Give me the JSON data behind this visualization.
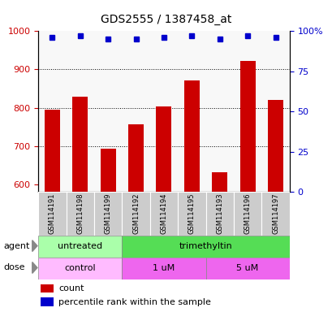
{
  "title": "GDS2555 / 1387458_at",
  "samples": [
    "GSM114191",
    "GSM114198",
    "GSM114199",
    "GSM114192",
    "GSM114194",
    "GSM114195",
    "GSM114193",
    "GSM114196",
    "GSM114197"
  ],
  "bar_values": [
    795,
    828,
    693,
    757,
    803,
    872,
    632,
    922,
    820
  ],
  "percentile_values": [
    96,
    97,
    95,
    95,
    96,
    97,
    95,
    97,
    96
  ],
  "bar_color": "#cc0000",
  "dot_color": "#0000cc",
  "ylim_left": [
    580,
    1000
  ],
  "ylim_right": [
    0,
    100
  ],
  "yticks_left": [
    600,
    700,
    800,
    900,
    1000
  ],
  "yticks_right": [
    0,
    25,
    50,
    75,
    100
  ],
  "ytick_right_labels": [
    "0",
    "25",
    "50",
    "75",
    "100%"
  ],
  "agent_groups": [
    {
      "label": "untreated",
      "start": 0,
      "end": 3,
      "color": "#aaffaa"
    },
    {
      "label": "trimethyltin",
      "start": 3,
      "end": 9,
      "color": "#55dd55"
    }
  ],
  "dose_groups": [
    {
      "label": "control",
      "start": 0,
      "end": 3,
      "color": "#ffbbff"
    },
    {
      "label": "1 uM",
      "start": 3,
      "end": 6,
      "color": "#ee66ee"
    },
    {
      "label": "5 uM",
      "start": 6,
      "end": 9,
      "color": "#ee66ee"
    }
  ],
  "legend_count_color": "#cc0000",
  "legend_dot_color": "#0000cc",
  "grid_color": "#000000",
  "tick_label_color_left": "#cc0000",
  "tick_label_color_right": "#0000cc",
  "sample_box_color": "#cccccc",
  "background_color": "#ffffff",
  "bar_facecolor": "#f8f8f8"
}
